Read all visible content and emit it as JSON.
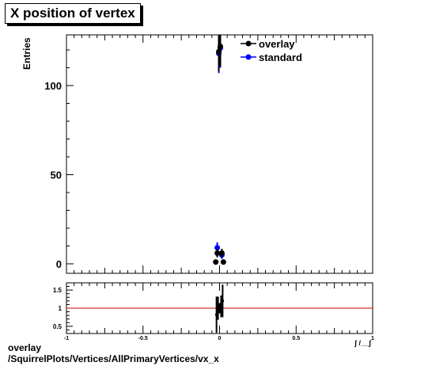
{
  "title": "X position of vertex",
  "footer": {
    "line1": "overlay",
    "line2": "/SquirrelPlots/Vertices/AllPrimaryVertices/vx_x"
  },
  "chart_data": [
    {
      "type": "scatter",
      "panel": "main",
      "ylabel": "Entries",
      "xlim": [
        -1,
        1
      ],
      "ylim": [
        -5,
        128
      ],
      "y_ticks": [
        "0",
        "50",
        "100"
      ],
      "x_ticks": [
        "-1",
        "-0.5",
        "0",
        "0.5",
        "1"
      ],
      "legend_position": "top-right",
      "series": [
        {
          "name": "overlay",
          "color": "#000000",
          "points": [
            {
              "x": -0.025,
              "y": 1,
              "err": 1
            },
            {
              "x": -0.015,
              "y": 6,
              "err": 2.4
            },
            {
              "x": -0.005,
              "y": 119,
              "err": 11
            },
            {
              "x": 0.005,
              "y": 122,
              "err": 11
            },
            {
              "x": 0.015,
              "y": 6,
              "err": 2.4
            },
            {
              "x": 0.025,
              "y": 1,
              "err": 1
            }
          ]
        },
        {
          "name": "standard",
          "color": "#0000ff",
          "points": [
            {
              "x": -0.015,
              "y": 9,
              "err": 3
            },
            {
              "x": -0.005,
              "y": 118,
              "err": 11
            },
            {
              "x": 0.005,
              "y": 121,
              "err": 11
            },
            {
              "x": 0.015,
              "y": 5,
              "err": 2.2
            }
          ]
        }
      ]
    },
    {
      "type": "scatter",
      "panel": "ratio",
      "xlim": [
        -1,
        1
      ],
      "ylim": [
        0.3,
        1.7
      ],
      "y_ticks": [
        "0.5",
        "1",
        "1.5"
      ],
      "x_ticks": [
        "-1",
        "-0.5",
        "0",
        "0.5",
        "1"
      ],
      "x_axis_label_partial": "ʃ /__ʃ",
      "reference_line": {
        "y": 1,
        "color": "#cc0000"
      },
      "series": [
        {
          "color": "#000000",
          "points": [
            {
              "x": -0.02,
              "y": 0.82,
              "err": 0.5
            },
            {
              "x": -0.01,
              "y": 1.0,
              "err": 0.32
            },
            {
              "x": 0.0,
              "y": 1.0,
              "err": 0.14
            },
            {
              "x": 0.01,
              "y": 1.05,
              "err": 0.3
            },
            {
              "x": 0.02,
              "y": 1.2,
              "err": 0.45
            }
          ]
        }
      ]
    }
  ]
}
